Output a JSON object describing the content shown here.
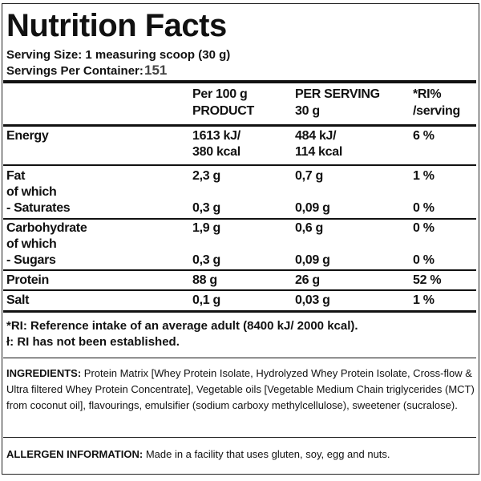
{
  "header": {
    "title": "Nutrition Facts",
    "serving_size": "Serving Size: 1 measuring scoop (30 g)",
    "servings_per_container_label": "Servings Per Container:",
    "servings_per_container_value": "151"
  },
  "table": {
    "columns": [
      [
        "Per 100 g",
        "PRODUCT"
      ],
      [
        "PER SERVING",
        "30 g"
      ],
      [
        "*RI%",
        "/serving"
      ]
    ],
    "rows": [
      {
        "label": "Energy",
        "values": [
          [
            "1613 kJ/",
            "380 kcal"
          ],
          [
            "484 kJ/",
            "114 kcal"
          ],
          [
            "6 %"
          ]
        ]
      },
      {
        "label": "Fat",
        "note": "of which",
        "values": [
          [
            "2,3 g"
          ],
          [
            "0,7 g"
          ],
          [
            "1 %"
          ]
        ]
      },
      {
        "label": "- Saturates",
        "values": [
          [
            "0,3 g"
          ],
          [
            "0,09 g"
          ],
          [
            "0 %"
          ]
        ]
      },
      {
        "label": "Carbohydrate",
        "note": "of which",
        "values": [
          [
            "1,9 g"
          ],
          [
            "0,6 g"
          ],
          [
            "0 %"
          ]
        ]
      },
      {
        "label": "- Sugars",
        "values": [
          [
            "0,3 g"
          ],
          [
            "0,09 g"
          ],
          [
            "0 %"
          ]
        ]
      },
      {
        "label": "Protein",
        "values": [
          [
            "88 g"
          ],
          [
            "26 g"
          ],
          [
            "52 %"
          ]
        ]
      },
      {
        "label": "Salt",
        "values": [
          [
            "0,1 g"
          ],
          [
            "0,03 g"
          ],
          [
            "1 %"
          ]
        ]
      }
    ]
  },
  "footnotes": [
    "*RI: Reference intake of an average adult (8400 kJ/ 2000 kcal).",
    "ł: RI has not been established."
  ],
  "ingredients": {
    "label": "INGREDIENTS:",
    "text": "Protein Matrix [Whey Protein Isolate, Hydrolyzed Whey Protein Isolate, Cross-flow & Ultra filtered Whey Protein Concentrate], Vegetable oils [Vegetable Medium Chain triglycerides (MCT) from coconut oil], flavourings, emulsifier (sodium carboxy methylcellulose), sweetener (sucralose)."
  },
  "allergen": {
    "label": "ALLERGEN INFORMATION:",
    "text": "Made in a facility that uses gluten, soy, egg and nuts."
  }
}
